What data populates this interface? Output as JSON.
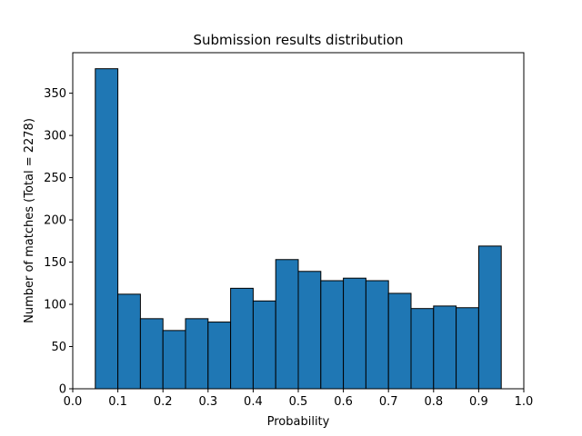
{
  "chart_data": {
    "type": "bar",
    "title": "Submission results distribution",
    "xlabel": "Probability",
    "ylabel": "Number of matches (Total = 2278)",
    "xlim": [
      0.0,
      1.0
    ],
    "ylim": [
      0,
      398
    ],
    "bin_width": 0.05,
    "bins": [
      {
        "x0": 0.05,
        "x1": 0.1,
        "count": 379
      },
      {
        "x0": 0.1,
        "x1": 0.15,
        "count": 112
      },
      {
        "x0": 0.15,
        "x1": 0.2,
        "count": 83
      },
      {
        "x0": 0.2,
        "x1": 0.25,
        "count": 69
      },
      {
        "x0": 0.25,
        "x1": 0.3,
        "count": 83
      },
      {
        "x0": 0.3,
        "x1": 0.35,
        "count": 79
      },
      {
        "x0": 0.35,
        "x1": 0.4,
        "count": 119
      },
      {
        "x0": 0.4,
        "x1": 0.45,
        "count": 104
      },
      {
        "x0": 0.45,
        "x1": 0.5,
        "count": 153
      },
      {
        "x0": 0.5,
        "x1": 0.55,
        "count": 139
      },
      {
        "x0": 0.55,
        "x1": 0.6,
        "count": 128
      },
      {
        "x0": 0.6,
        "x1": 0.65,
        "count": 131
      },
      {
        "x0": 0.65,
        "x1": 0.7,
        "count": 128
      },
      {
        "x0": 0.7,
        "x1": 0.75,
        "count": 113
      },
      {
        "x0": 0.75,
        "x1": 0.8,
        "count": 95
      },
      {
        "x0": 0.8,
        "x1": 0.85,
        "count": 98
      },
      {
        "x0": 0.85,
        "x1": 0.9,
        "count": 96
      },
      {
        "x0": 0.9,
        "x1": 0.95,
        "count": 169
      }
    ],
    "xticks": [
      "0.0",
      "0.1",
      "0.2",
      "0.3",
      "0.4",
      "0.5",
      "0.6",
      "0.7",
      "0.8",
      "0.9",
      "1.0"
    ],
    "yticks": [
      "0",
      "50",
      "100",
      "150",
      "200",
      "250",
      "300",
      "350"
    ],
    "grid": false,
    "colors": {
      "bar_fill": "#1f77b4",
      "bar_edge": "#000000"
    }
  }
}
